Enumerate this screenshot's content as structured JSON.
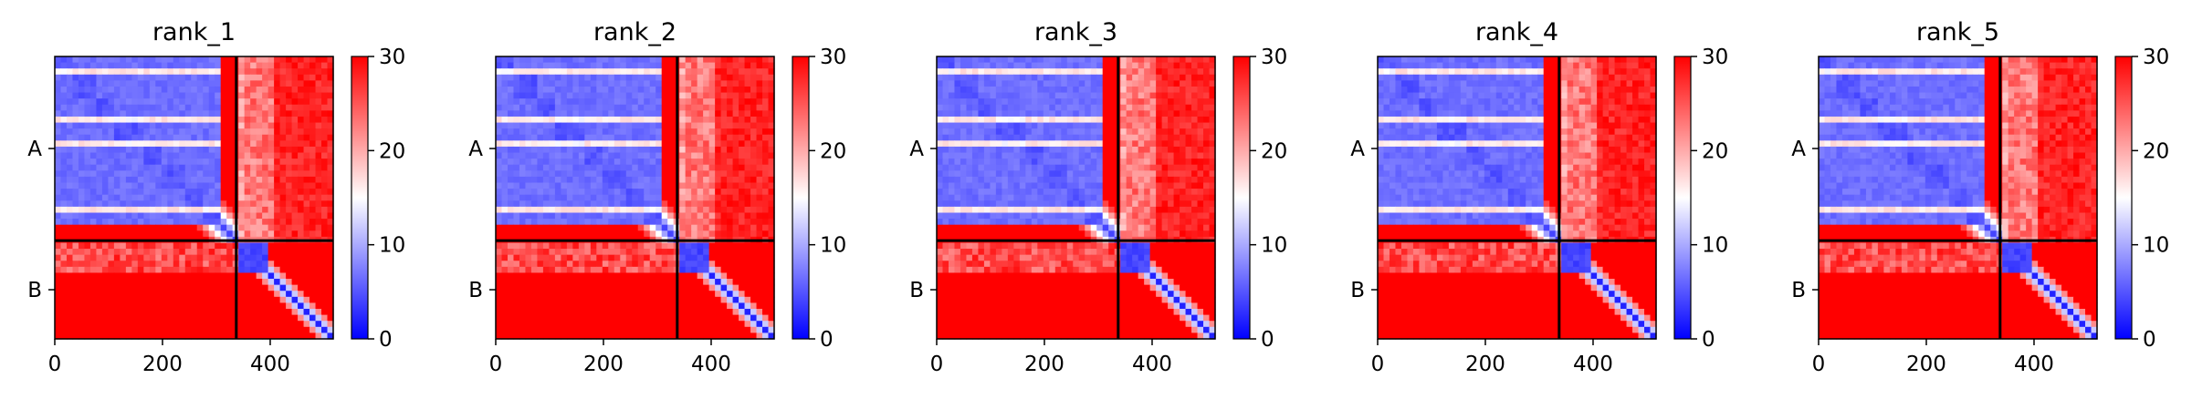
{
  "chart_data": {
    "type": "heatmap",
    "x_ticks": [
      0,
      200,
      400
    ],
    "xlim": [
      0,
      517
    ],
    "chain_boundary": 337,
    "chain_labels": [
      "A",
      "B"
    ],
    "colorbar": {
      "min": 0,
      "max": 30,
      "ticks": [
        0,
        10,
        20,
        30
      ],
      "colors": [
        "#0000ff",
        "#ffffff",
        "#ff0000"
      ]
    },
    "panels": [
      {
        "title": "rank_1"
      },
      {
        "title": "rank_2"
      },
      {
        "title": "rank_3"
      },
      {
        "title": "rank_4"
      },
      {
        "title": "rank_5"
      }
    ]
  }
}
